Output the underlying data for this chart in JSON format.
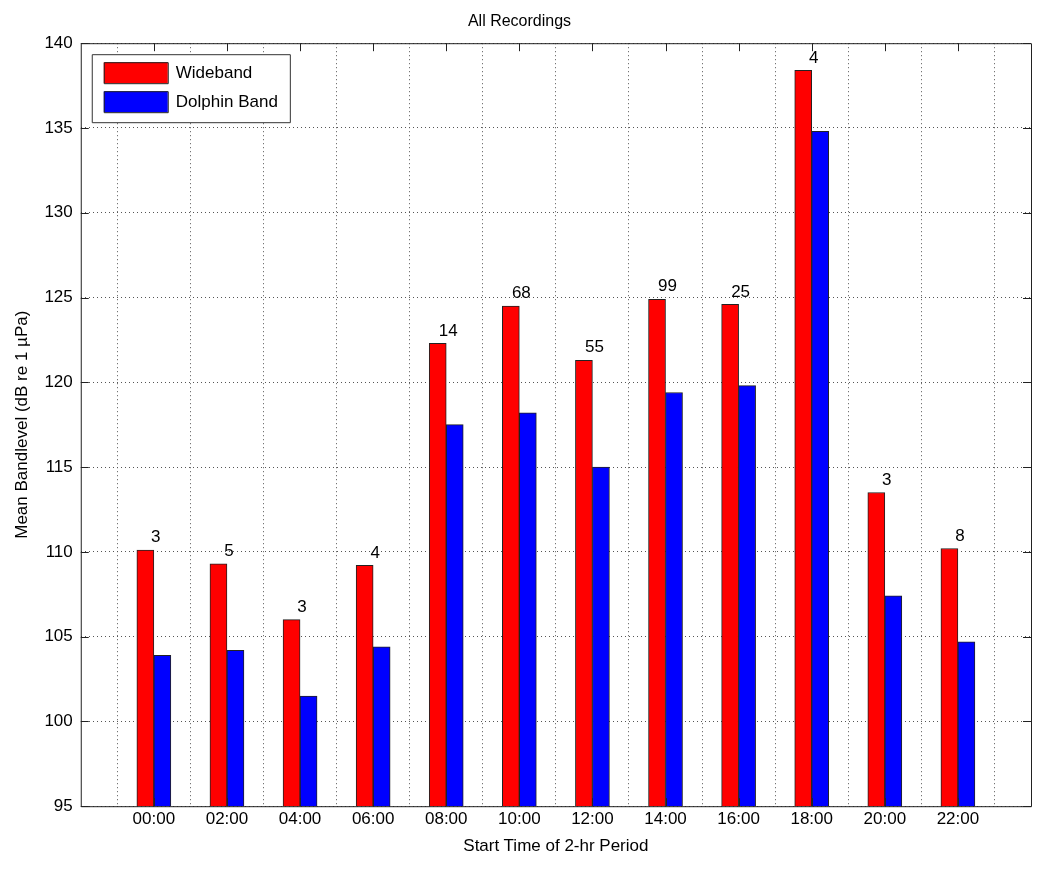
{
  "chart_data": {
    "type": "bar",
    "title": "All Recordings",
    "xlabel": "Start Time of 2-hr Period",
    "ylabel": "Mean Bandlevel (dB re 1 µPa)",
    "categories": [
      "00:00",
      "02:00",
      "04:00",
      "06:00",
      "08:00",
      "10:00",
      "12:00",
      "14:00",
      "16:00",
      "18:00",
      "20:00",
      "22:00"
    ],
    "series": [
      {
        "name": "Wideband",
        "color": "#ff0000",
        "values": [
          110.1,
          109.3,
          106.0,
          109.2,
          122.3,
          124.5,
          121.3,
          124.9,
          124.6,
          138.4,
          113.5,
          110.2
        ]
      },
      {
        "name": "Dolphin Band",
        "color": "#0000ff",
        "values": [
          103.9,
          104.2,
          101.5,
          104.4,
          117.5,
          118.2,
          115.0,
          119.4,
          119.8,
          134.8,
          107.4,
          104.7
        ]
      }
    ],
    "ylim": [
      95,
      140
    ],
    "yticks": [
      95,
      100,
      105,
      110,
      115,
      120,
      125,
      130,
      135,
      140
    ],
    "grid": true,
    "legend": "top left",
    "annotations": [
      {
        "text": "3",
        "x": "00:00",
        "y": 110.1
      },
      {
        "text": "5",
        "x": "02:00",
        "y": 109.3
      },
      {
        "text": "3",
        "x": "04:00",
        "y": 106.0
      },
      {
        "text": "4",
        "x": "06:00",
        "y": 109.2
      },
      {
        "text": "14",
        "x": "08:00",
        "y": 122.3
      },
      {
        "text": "68",
        "x": "10:00",
        "y": 124.5
      },
      {
        "text": "55",
        "x": "12:00",
        "y": 121.3
      },
      {
        "text": "99",
        "x": "14:00",
        "y": 124.9
      },
      {
        "text": "25",
        "x": "16:00",
        "y": 124.6
      },
      {
        "text": "4",
        "x": "18:00",
        "y": 138.4
      },
      {
        "text": "3",
        "x": "20:00",
        "y": 113.5
      },
      {
        "text": "8",
        "x": "22:00",
        "y": 110.2
      }
    ]
  }
}
